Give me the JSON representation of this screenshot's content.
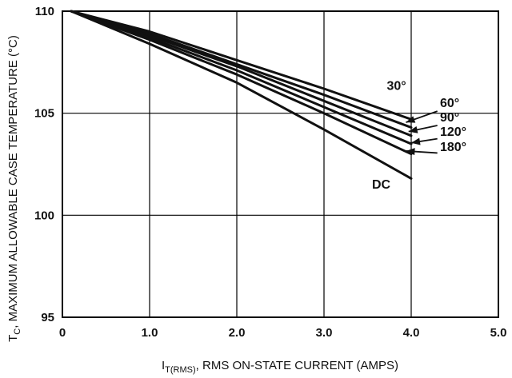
{
  "chart_data": {
    "type": "line",
    "xlabel_main": "I",
    "xlabel_sub": "T(RMS)",
    "xlabel_rest": ", RMS ON-STATE CURRENT (AMPS)",
    "ylabel_main": "T",
    "ylabel_sub": "C",
    "ylabel_rest": ", MAXIMUM ALLOWABLE CASE TEMPERATURE (°C)",
    "xlim": [
      0,
      5
    ],
    "ylim": [
      95,
      110
    ],
    "x_ticks": [
      "0",
      "1.0",
      "2.0",
      "3.0",
      "4.0",
      "5.0"
    ],
    "y_ticks": [
      "95",
      "100",
      "105",
      "110"
    ],
    "grid": true,
    "series": [
      {
        "name": "30°",
        "x": [
          0.1,
          1.0,
          2.0,
          3.0,
          4.0
        ],
        "y": [
          110,
          109.0,
          107.6,
          106.2,
          104.7
        ]
      },
      {
        "name": "60°",
        "x": [
          0.1,
          1.0,
          2.0,
          3.0,
          4.0
        ],
        "y": [
          110,
          108.9,
          107.4,
          105.9,
          104.3
        ]
      },
      {
        "name": "90°",
        "x": [
          0.1,
          1.0,
          2.0,
          3.0,
          4.0
        ],
        "y": [
          110,
          108.8,
          107.3,
          105.6,
          103.9
        ]
      },
      {
        "name": "120°",
        "x": [
          0.1,
          1.0,
          2.0,
          3.0,
          4.0
        ],
        "y": [
          110,
          108.7,
          107.1,
          105.3,
          103.5
        ]
      },
      {
        "name": "180°",
        "x": [
          0.1,
          1.0,
          2.0,
          3.0,
          4.0
        ],
        "y": [
          110,
          108.6,
          106.9,
          105.0,
          103.0
        ]
      },
      {
        "name": "DC",
        "x": [
          0.1,
          1.0,
          2.0,
          3.0,
          4.0
        ],
        "y": [
          110,
          108.4,
          106.5,
          104.2,
          101.8
        ]
      }
    ],
    "annotations": [
      {
        "text": "30°",
        "series": "30°",
        "x": 3.72,
        "y": 106.15,
        "arrow": false
      },
      {
        "text": "60°",
        "series": "60°",
        "x": 4.33,
        "y": 105.3,
        "arrow": true,
        "arrow_tail": [
          4.3,
          105.1
        ],
        "arrow_head": [
          3.94,
          104.55
        ]
      },
      {
        "text": "90°",
        "series": "90°",
        "x": 4.33,
        "y": 104.6,
        "arrow": true,
        "arrow_tail": [
          4.3,
          104.4
        ],
        "arrow_head": [
          3.97,
          104.1
        ]
      },
      {
        "text": "120°",
        "series": "120°",
        "x": 4.33,
        "y": 103.9,
        "arrow": true,
        "arrow_tail": [
          4.3,
          103.75
        ],
        "arrow_head": [
          4.0,
          103.55
        ]
      },
      {
        "text": "180°",
        "series": "180°",
        "x": 4.33,
        "y": 103.15,
        "arrow": true,
        "arrow_tail": [
          4.3,
          103.05
        ],
        "arrow_head": [
          3.94,
          103.15
        ]
      },
      {
        "text": "DC",
        "series": "DC",
        "x": 3.55,
        "y": 101.3,
        "arrow": false
      }
    ]
  }
}
